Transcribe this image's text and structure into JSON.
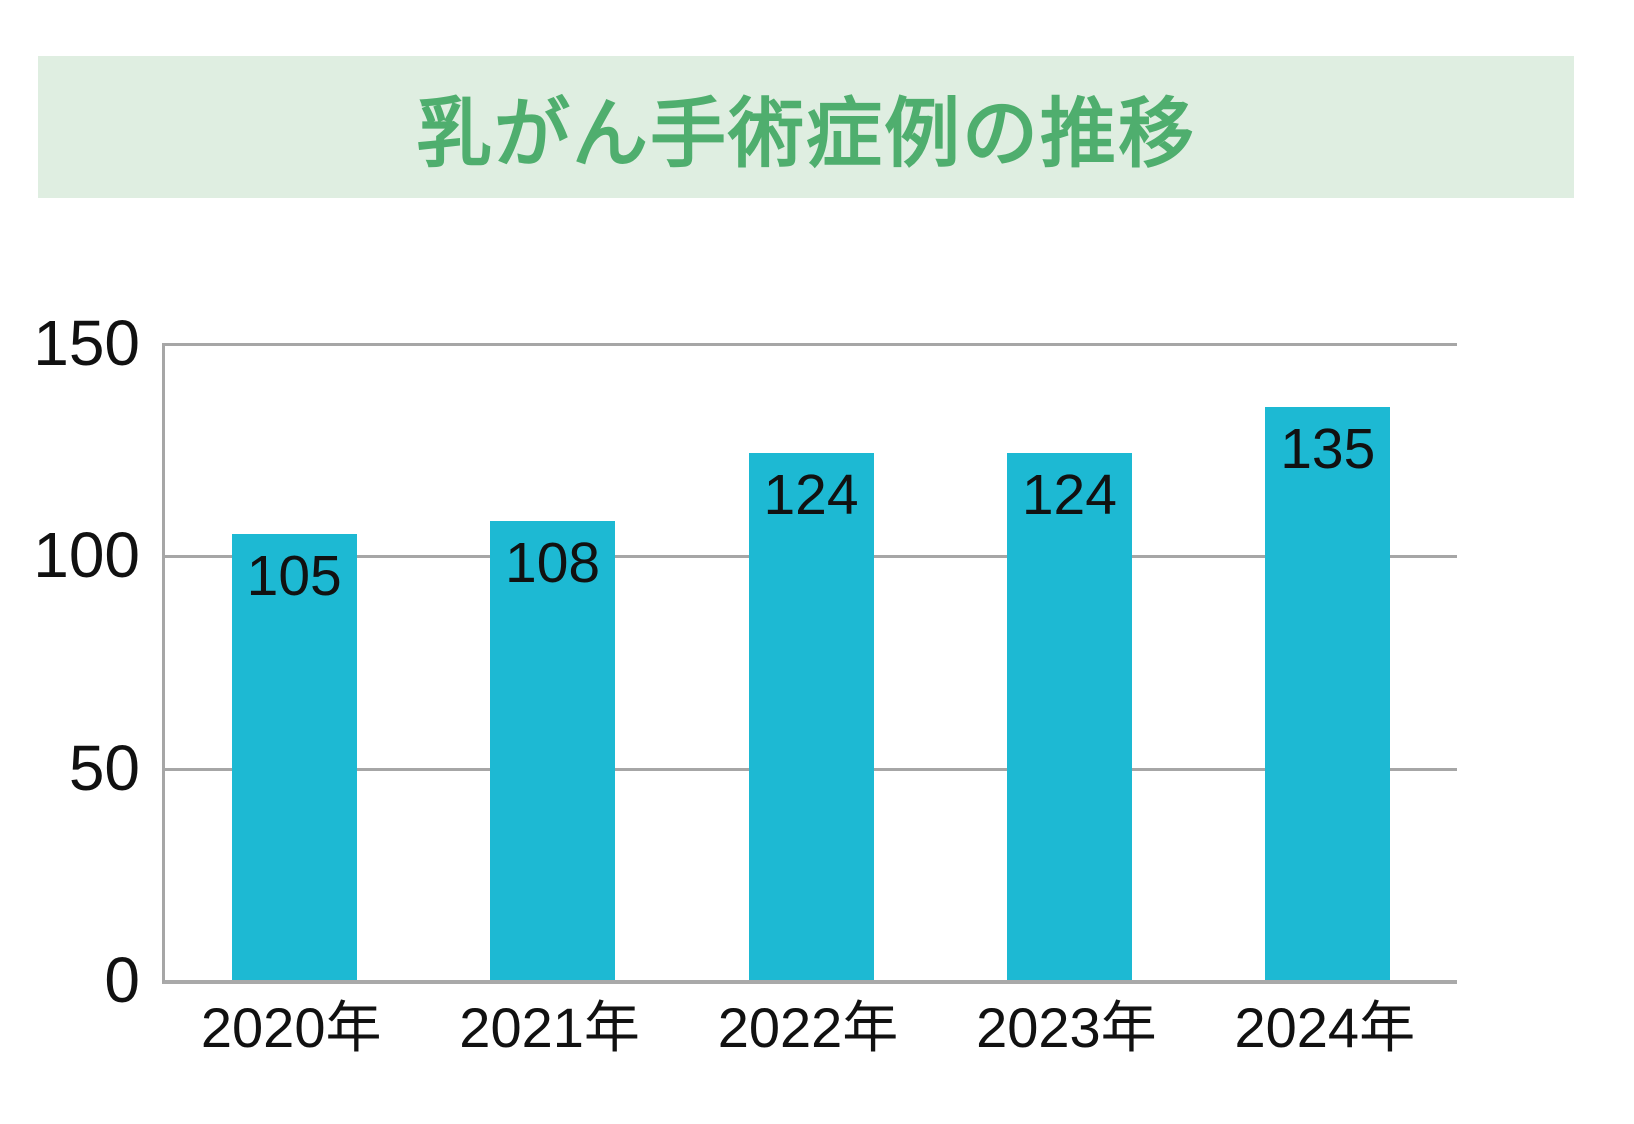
{
  "title": {
    "text": "乳がん手術症例の推移"
  },
  "colors": {
    "banner_background": "#dfeee1",
    "title_green": "#4fae6e",
    "bar_fill": "#1db9d3",
    "grid_gray": "#a6a6a6",
    "axis_gray": "#a9a9a9",
    "label_black": "#111111"
  },
  "chart_data": {
    "type": "bar",
    "title": "乳がん手術症例の推移",
    "categories": [
      "2020年",
      "2021年",
      "2022年",
      "2023年",
      "2024年"
    ],
    "values": [
      105,
      108,
      124,
      124,
      135
    ],
    "xlabel": "",
    "ylabel": "",
    "ylim": [
      0,
      150
    ],
    "yticks": [
      0,
      50,
      100,
      150
    ],
    "grid": true,
    "legend": false,
    "bar_color": "#1db9d3",
    "value_label_position": "inside-top"
  }
}
